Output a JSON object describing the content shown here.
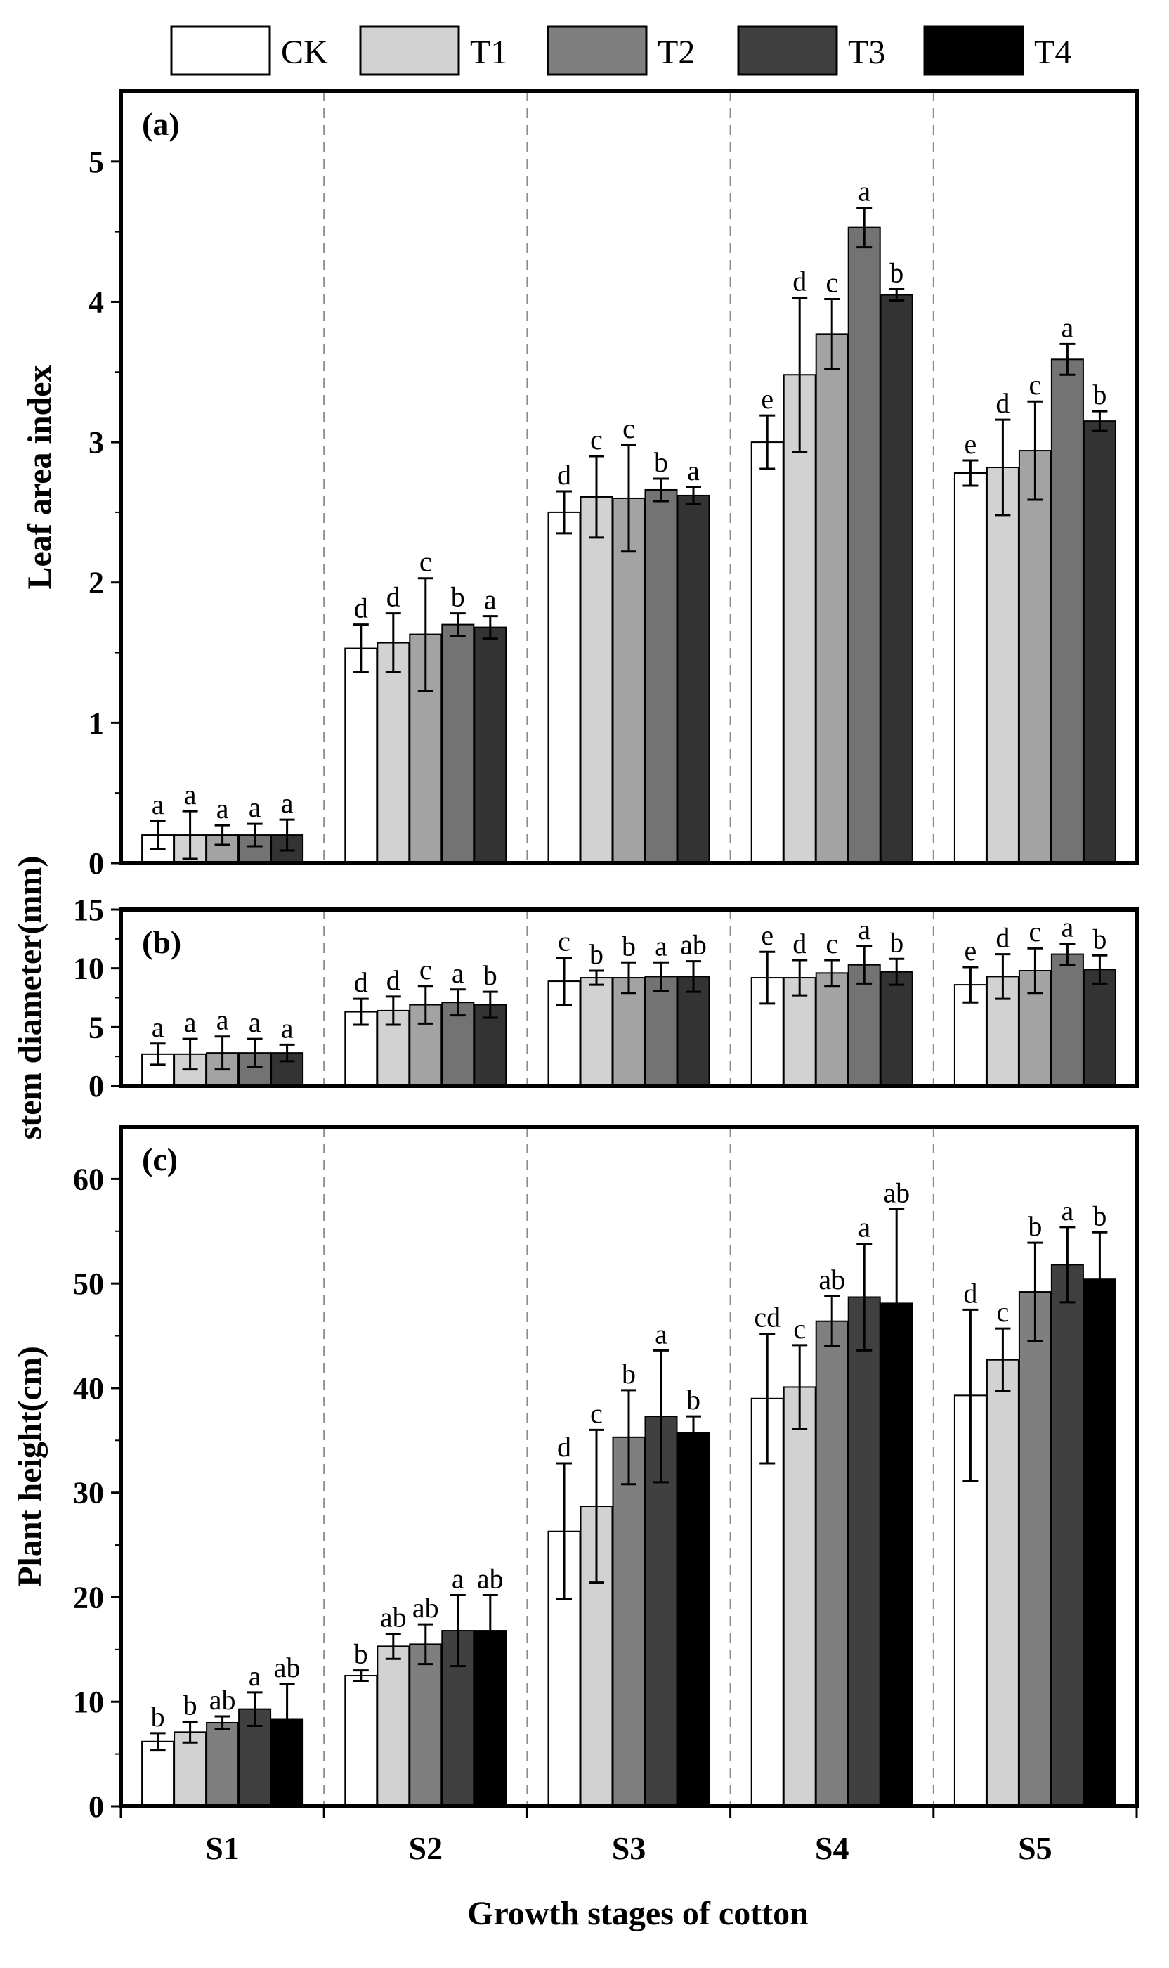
{
  "legend": [
    {
      "name": "CK",
      "color": "#ffffff"
    },
    {
      "name": "T1",
      "color": "#d2d2d2"
    },
    {
      "name": "T2",
      "color": "#7f7f7f"
    },
    {
      "name": "T3",
      "color": "#404040"
    },
    {
      "name": "T4",
      "color": "#000000"
    }
  ],
  "x_axis": {
    "title": "Growth stages of cotton",
    "categories": [
      "S1",
      "S2",
      "S3",
      "S4",
      "S5"
    ]
  },
  "chart_data": [
    {
      "type": "bar",
      "panel": "(a)",
      "ylabel": "Leaf area index",
      "ylim": [
        0,
        5.5
      ],
      "yticks": [
        0,
        1,
        2,
        3,
        4,
        5
      ],
      "categories": [
        "S1",
        "S2",
        "S3",
        "S4",
        "S5"
      ],
      "series": [
        {
          "name": "CK",
          "color": "#ffffff",
          "values": [
            0.2,
            1.53,
            2.5,
            3.0,
            2.78
          ],
          "errors": [
            0.1,
            0.17,
            0.15,
            0.19,
            0.09
          ],
          "letters": [
            "a",
            "d",
            "d",
            "e",
            "e"
          ]
        },
        {
          "name": "T1",
          "color": "#d2d2d2",
          "values": [
            0.2,
            1.57,
            2.61,
            3.48,
            2.82
          ],
          "errors": [
            0.17,
            0.21,
            0.29,
            0.55,
            0.34
          ],
          "letters": [
            "a",
            "d",
            "c",
            "d",
            "d"
          ]
        },
        {
          "name": "T2",
          "color": "#a3a3a3",
          "values": [
            0.2,
            1.63,
            2.6,
            3.77,
            2.94
          ],
          "errors": [
            0.07,
            0.4,
            0.38,
            0.25,
            0.35
          ],
          "letters": [
            "a",
            "c",
            "c",
            "c",
            "c"
          ]
        },
        {
          "name": "T3",
          "color": "#737373",
          "values": [
            0.2,
            1.7,
            2.66,
            4.53,
            3.59
          ],
          "errors": [
            0.08,
            0.08,
            0.08,
            0.14,
            0.11
          ],
          "letters": [
            "a",
            "b",
            "b",
            "a",
            "a"
          ]
        },
        {
          "name": "T4",
          "color": "#333333",
          "values": [
            0.2,
            1.68,
            2.62,
            4.05,
            3.15
          ],
          "errors": [
            0.11,
            0.08,
            0.06,
            0.04,
            0.07
          ],
          "letters": [
            "a",
            "a",
            "a",
            "b",
            "b"
          ]
        }
      ]
    },
    {
      "type": "bar",
      "panel": "(b)",
      "ylabel": "stem diameter(mm)",
      "ylim": [
        0,
        15
      ],
      "yticks": [
        0,
        5,
        10,
        15
      ],
      "categories": [
        "S1",
        "S2",
        "S3",
        "S4",
        "S5"
      ],
      "series": [
        {
          "name": "CK",
          "color": "#ffffff",
          "values": [
            2.7,
            6.3,
            8.9,
            9.2,
            8.6
          ],
          "errors": [
            0.9,
            1.1,
            2.0,
            2.2,
            1.5
          ],
          "letters": [
            "a",
            "d",
            "c",
            "e",
            "e"
          ]
        },
        {
          "name": "T1",
          "color": "#d2d2d2",
          "values": [
            2.7,
            6.4,
            9.2,
            9.2,
            9.3
          ],
          "errors": [
            1.3,
            1.2,
            0.6,
            1.5,
            1.9
          ],
          "letters": [
            "a",
            "d",
            "b",
            "d",
            "d"
          ]
        },
        {
          "name": "T2",
          "color": "#a3a3a3",
          "values": [
            2.8,
            6.9,
            9.2,
            9.6,
            9.8
          ],
          "errors": [
            1.4,
            1.6,
            1.3,
            1.1,
            1.9
          ],
          "letters": [
            "a",
            "c",
            "b",
            "c",
            "c"
          ]
        },
        {
          "name": "T3",
          "color": "#737373",
          "values": [
            2.8,
            7.1,
            9.3,
            10.3,
            11.2
          ],
          "errors": [
            1.2,
            1.1,
            1.2,
            1.6,
            0.9
          ],
          "letters": [
            "a",
            "a",
            "a",
            "a",
            "a"
          ]
        },
        {
          "name": "T4",
          "color": "#333333",
          "values": [
            2.8,
            6.9,
            9.3,
            9.7,
            9.9
          ],
          "errors": [
            0.7,
            1.1,
            1.3,
            1.1,
            1.2
          ],
          "letters": [
            "a",
            "b",
            "ab",
            "b",
            "b"
          ]
        }
      ]
    },
    {
      "type": "bar",
      "panel": "(c)",
      "ylabel": "Plant height(cm)",
      "ylim": [
        0,
        65
      ],
      "yticks": [
        0,
        10,
        20,
        30,
        40,
        50,
        60
      ],
      "categories": [
        "S1",
        "S2",
        "S3",
        "S4",
        "S5"
      ],
      "series": [
        {
          "name": "CK",
          "color": "#ffffff",
          "values": [
            6.2,
            12.5,
            26.3,
            39.0,
            39.3
          ],
          "errors": [
            0.8,
            0.5,
            6.5,
            6.2,
            8.2
          ],
          "letters": [
            "b",
            "b",
            "d",
            "cd",
            "d"
          ]
        },
        {
          "name": "T1",
          "color": "#d2d2d2",
          "values": [
            7.1,
            15.3,
            28.7,
            40.1,
            42.7
          ],
          "errors": [
            1.0,
            1.2,
            7.3,
            4.0,
            3.0
          ],
          "letters": [
            "b",
            "ab",
            "c",
            "c",
            "c"
          ]
        },
        {
          "name": "T2",
          "color": "#7f7f7f",
          "values": [
            8.0,
            15.5,
            35.3,
            46.4,
            49.2
          ],
          "errors": [
            0.6,
            1.9,
            4.5,
            2.4,
            4.7
          ],
          "letters": [
            "ab",
            "ab",
            "b",
            "ab",
            "b"
          ]
        },
        {
          "name": "T3",
          "color": "#404040",
          "values": [
            9.3,
            16.8,
            37.3,
            48.7,
            51.8
          ],
          "errors": [
            1.6,
            3.4,
            6.3,
            5.1,
            3.6
          ],
          "letters": [
            "a",
            "a",
            "a",
            "a",
            "a"
          ]
        },
        {
          "name": "T4",
          "color": "#000000",
          "values": [
            8.3,
            16.8,
            35.7,
            48.1,
            50.4
          ],
          "errors": [
            3.4,
            3.4,
            1.6,
            9.0,
            4.5
          ],
          "letters": [
            "ab",
            "ab",
            "b",
            "ab",
            "b"
          ]
        }
      ]
    }
  ]
}
